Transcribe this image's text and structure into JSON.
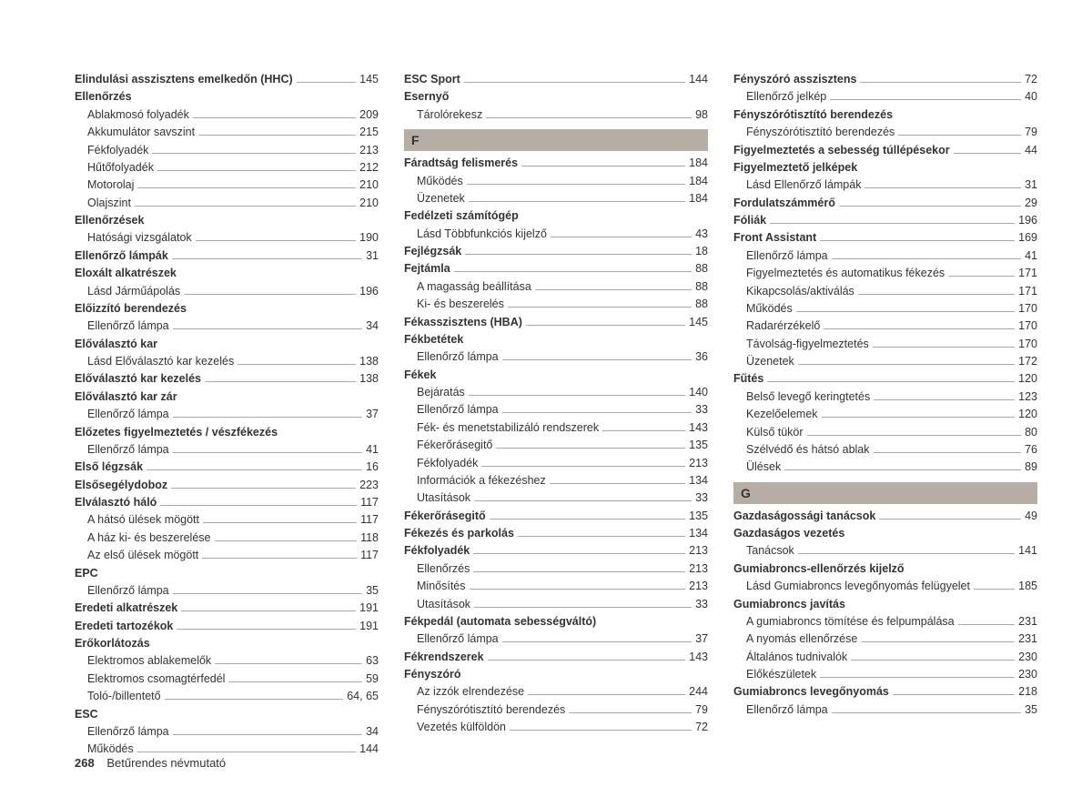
{
  "footer": {
    "pageNumber": "268",
    "title": "Betűrendes névmutató"
  },
  "sectionHeaders": {
    "F": "F",
    "G": "G"
  },
  "col1": [
    {
      "t": "main",
      "label": "Elindulási asszisztens emelkedőn (HHC)",
      "page": "145"
    },
    {
      "t": "main",
      "label": "Ellenőrzés"
    },
    {
      "t": "sub",
      "label": "Ablakmosó folyadék",
      "page": "209"
    },
    {
      "t": "sub",
      "label": "Akkumulátor savszint",
      "page": "215"
    },
    {
      "t": "sub",
      "label": "Fékfolyadék",
      "page": "213"
    },
    {
      "t": "sub",
      "label": "Hűtőfolyadék",
      "page": "212"
    },
    {
      "t": "sub",
      "label": "Motorolaj",
      "page": "210"
    },
    {
      "t": "sub",
      "label": "Olajszint",
      "page": "210"
    },
    {
      "t": "main",
      "label": "Ellenőrzések"
    },
    {
      "t": "sub",
      "label": "Hatósági vizsgálatok",
      "page": "190"
    },
    {
      "t": "main",
      "label": "Ellenőrző lámpák",
      "page": "31"
    },
    {
      "t": "main",
      "label": "Eloxált alkatrészek"
    },
    {
      "t": "sub",
      "label": "Lásd Járműápolás",
      "page": "196"
    },
    {
      "t": "main",
      "label": "Előizzító berendezés"
    },
    {
      "t": "sub",
      "label": "Ellenőrző lámpa",
      "page": "34"
    },
    {
      "t": "main",
      "label": "Előválasztó kar"
    },
    {
      "t": "sub",
      "label": "Lásd Előválasztó kar kezelés",
      "page": "138"
    },
    {
      "t": "main",
      "label": "Előválasztó kar kezelés",
      "page": "138"
    },
    {
      "t": "main",
      "label": "Előválasztó kar zár"
    },
    {
      "t": "sub",
      "label": "Ellenőrző lámpa",
      "page": "37"
    },
    {
      "t": "main",
      "label": "Előzetes figyelmeztetés / vészfékezés"
    },
    {
      "t": "sub",
      "label": "Ellenőrző lámpa",
      "page": "41"
    },
    {
      "t": "main",
      "label": "Első légzsák",
      "page": "16"
    },
    {
      "t": "main",
      "label": "Elsősegélydoboz",
      "page": "223"
    },
    {
      "t": "main",
      "label": "Elválasztó háló",
      "page": "117"
    },
    {
      "t": "sub",
      "label": "A hátsó ülések mögött",
      "page": "117"
    },
    {
      "t": "sub",
      "label": "A ház ki- és beszerelése",
      "page": "118"
    },
    {
      "t": "sub",
      "label": "Az első ülések mögött",
      "page": "117"
    },
    {
      "t": "main",
      "label": "EPC"
    },
    {
      "t": "sub",
      "label": "Ellenőrző lámpa",
      "page": "35"
    },
    {
      "t": "main",
      "label": "Eredeti alkatrészek",
      "page": "191"
    },
    {
      "t": "main",
      "label": "Eredeti tartozékok",
      "page": "191"
    },
    {
      "t": "main",
      "label": "Erőkorlátozás"
    },
    {
      "t": "sub",
      "label": "Elektromos ablakemelők",
      "page": "63"
    },
    {
      "t": "sub",
      "label": "Elektromos csomagtérfedél",
      "page": "59"
    },
    {
      "t": "sub",
      "label": "Toló-/billentető",
      "page": "64, 65"
    },
    {
      "t": "main",
      "label": "ESC"
    },
    {
      "t": "sub",
      "label": "Ellenőrző lámpa",
      "page": "34"
    },
    {
      "t": "sub",
      "label": "Működés",
      "page": "144"
    }
  ],
  "col2": [
    {
      "t": "main",
      "label": "ESC Sport",
      "page": "144"
    },
    {
      "t": "main",
      "label": "Esernyő"
    },
    {
      "t": "sub",
      "label": "Tárolórekesz",
      "page": "98"
    },
    {
      "t": "header",
      "key": "F"
    },
    {
      "t": "main",
      "label": "Fáradtság felismerés",
      "page": "184"
    },
    {
      "t": "sub",
      "label": "Működés",
      "page": "184"
    },
    {
      "t": "sub",
      "label": "Üzenetek",
      "page": "184"
    },
    {
      "t": "main",
      "label": "Fedélzeti számítógép"
    },
    {
      "t": "sub",
      "label": "Lásd Többfunkciós kijelző",
      "page": "43"
    },
    {
      "t": "main",
      "label": "Fejlégzsák",
      "page": "18"
    },
    {
      "t": "main",
      "label": "Fejtámla",
      "page": "88"
    },
    {
      "t": "sub",
      "label": "A magasság beállítása",
      "page": "88"
    },
    {
      "t": "sub",
      "label": "Ki- és beszerelés",
      "page": "88"
    },
    {
      "t": "main",
      "label": "Fékasszisztens (HBA)",
      "page": "145"
    },
    {
      "t": "main",
      "label": "Fékbetétek"
    },
    {
      "t": "sub",
      "label": "Ellenőrző lámpa",
      "page": "36"
    },
    {
      "t": "main",
      "label": "Fékek"
    },
    {
      "t": "sub",
      "label": "Bejáratás",
      "page": "140"
    },
    {
      "t": "sub",
      "label": "Ellenőrző lámpa",
      "page": "33"
    },
    {
      "t": "sub",
      "label": "Fék- és menetstabilizáló rendszerek",
      "page": "143"
    },
    {
      "t": "sub",
      "label": "Fékerőrásegitő",
      "page": "135"
    },
    {
      "t": "sub",
      "label": "Fékfolyadék",
      "page": "213"
    },
    {
      "t": "sub",
      "label": "Információk a fékezéshez",
      "page": "134"
    },
    {
      "t": "sub",
      "label": "Utasítások",
      "page": "33"
    },
    {
      "t": "main",
      "label": "Fékerőrásegitő",
      "page": "135"
    },
    {
      "t": "main",
      "label": "Fékezés és parkolás",
      "page": "134"
    },
    {
      "t": "main",
      "label": "Fékfolyadék",
      "page": "213"
    },
    {
      "t": "sub",
      "label": "Ellenőrzés",
      "page": "213"
    },
    {
      "t": "sub",
      "label": "Minősítés",
      "page": "213"
    },
    {
      "t": "sub",
      "label": "Utasítások",
      "page": "33"
    },
    {
      "t": "main",
      "label": "Fékpedál (automata sebességváltó)"
    },
    {
      "t": "sub",
      "label": "Ellenőrző lámpa",
      "page": "37"
    },
    {
      "t": "main",
      "label": "Fékrendszerek",
      "page": "143"
    },
    {
      "t": "main",
      "label": "Fényszóró"
    },
    {
      "t": "sub",
      "label": "Az izzók elrendezése",
      "page": "244"
    },
    {
      "t": "sub",
      "label": "Fényszórótisztító berendezés",
      "page": "79"
    },
    {
      "t": "sub",
      "label": "Vezetés külföldön",
      "page": "72"
    }
  ],
  "col3": [
    {
      "t": "main",
      "label": "Fényszóró asszisztens",
      "page": "72"
    },
    {
      "t": "sub",
      "label": "Ellenőrző jelkép",
      "page": "40"
    },
    {
      "t": "main",
      "label": "Fényszórótisztító berendezés"
    },
    {
      "t": "sub",
      "label": "Fényszórótisztító berendezés",
      "page": "79"
    },
    {
      "t": "main",
      "label": "Figyelmeztetés a sebesség túllépésekor",
      "page": "44"
    },
    {
      "t": "main",
      "label": "Figyelmeztető jelképek"
    },
    {
      "t": "sub",
      "label": "Lásd Ellenőrző lámpák",
      "page": "31"
    },
    {
      "t": "main",
      "label": "Fordulatszámmérő",
      "page": "29"
    },
    {
      "t": "main",
      "label": "Fóliák",
      "page": "196"
    },
    {
      "t": "main",
      "label": "Front Assistant",
      "page": "169"
    },
    {
      "t": "sub",
      "label": "Ellenőrző lámpa",
      "page": "41"
    },
    {
      "t": "sub",
      "label": "Figyelmeztetés és automatikus fékezés",
      "page": "171"
    },
    {
      "t": "sub",
      "label": "Kikapcsolás/aktiválás",
      "page": "171"
    },
    {
      "t": "sub",
      "label": "Működés",
      "page": "170"
    },
    {
      "t": "sub",
      "label": "Radarérzékelő",
      "page": "170"
    },
    {
      "t": "sub",
      "label": "Távolság-figyelmeztetés",
      "page": "170"
    },
    {
      "t": "sub",
      "label": "Üzenetek",
      "page": "172"
    },
    {
      "t": "main",
      "label": "Fűtés",
      "page": "120"
    },
    {
      "t": "sub",
      "label": "Belső levegő keringtetés",
      "page": "123"
    },
    {
      "t": "sub",
      "label": "Kezelőelemek",
      "page": "120"
    },
    {
      "t": "sub",
      "label": "Külső tükör",
      "page": "80"
    },
    {
      "t": "sub",
      "label": "Szélvédő és hátsó ablak",
      "page": "76"
    },
    {
      "t": "sub",
      "label": "Ülések",
      "page": "89"
    },
    {
      "t": "header",
      "key": "G"
    },
    {
      "t": "main",
      "label": "Gazdaságossági tanácsok",
      "page": "49"
    },
    {
      "t": "main",
      "label": "Gazdaságos vezetés"
    },
    {
      "t": "sub",
      "label": "Tanácsok",
      "page": "141"
    },
    {
      "t": "main",
      "label": "Gumiabroncs-ellenőrzés kijelző"
    },
    {
      "t": "sub",
      "label": "Lásd Gumiabroncs levegőnyomás felügyelet",
      "page": "185"
    },
    {
      "t": "main",
      "label": "Gumiabroncs javítás"
    },
    {
      "t": "sub",
      "label": "A gumiabroncs tömítése és felpumpálása",
      "page": "231"
    },
    {
      "t": "sub",
      "label": "A nyomás ellenőrzése",
      "page": "231"
    },
    {
      "t": "sub",
      "label": "Általános tudnivalók",
      "page": "230"
    },
    {
      "t": "sub",
      "label": "Előkészületek",
      "page": "230"
    },
    {
      "t": "main",
      "label": "Gumiabroncs levegőnyomás",
      "page": "218"
    },
    {
      "t": "sub",
      "label": "Ellenőrző lámpa",
      "page": "35"
    }
  ]
}
